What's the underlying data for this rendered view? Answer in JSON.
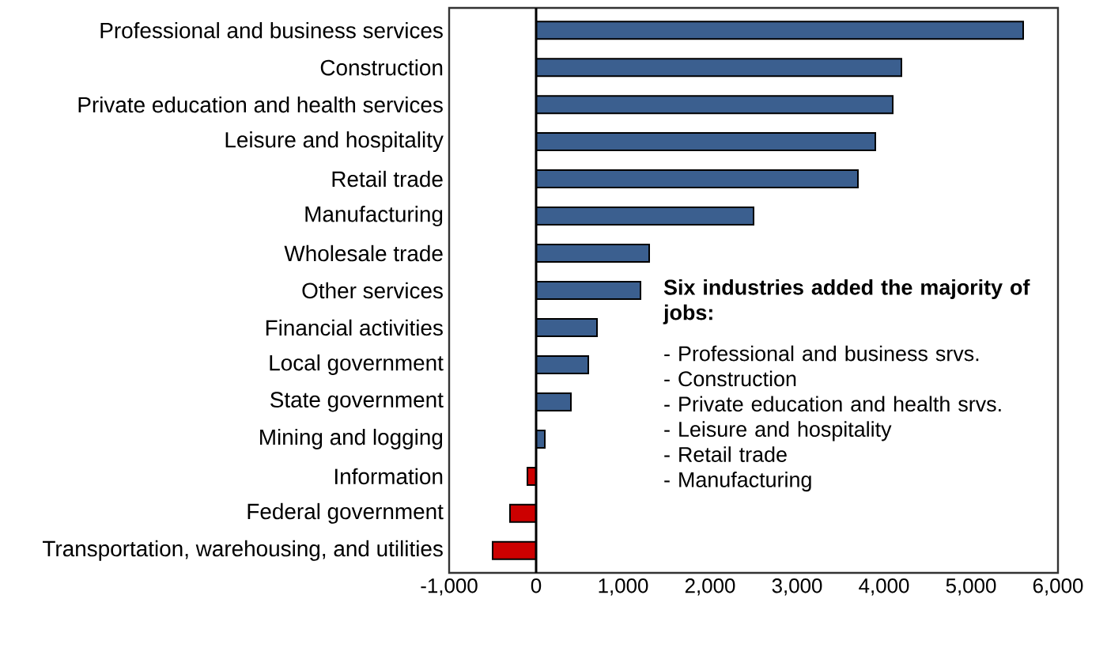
{
  "chart_data": {
    "type": "bar",
    "orientation": "horizontal",
    "categories": [
      "Professional and business services",
      "Construction",
      "Private education and health services",
      "Leisure and hospitality",
      "Retail trade",
      "Manufacturing",
      "Wholesale trade",
      "Other services",
      "Financial activities",
      "Local government",
      "State government",
      "Mining and logging",
      "Information",
      "Federal government",
      "Transportation, warehousing, and utilities"
    ],
    "values": [
      5600,
      4200,
      4100,
      3900,
      3700,
      2500,
      1300,
      1200,
      700,
      600,
      400,
      100,
      -100,
      -300,
      -500
    ],
    "colors": [
      "#3b5f8f",
      "#3b5f8f",
      "#3b5f8f",
      "#3b5f8f",
      "#3b5f8f",
      "#3b5f8f",
      "#3b5f8f",
      "#3b5f8f",
      "#3b5f8f",
      "#3b5f8f",
      "#3b5f8f",
      "#3b5f8f",
      "#cc0000",
      "#cc0000",
      "#cc0000"
    ],
    "xlim": [
      -1000,
      6000
    ],
    "xticks": [
      {
        "value": -1000,
        "label": "-1,000"
      },
      0,
      {
        "value": 1000,
        "label": "1,000"
      },
      {
        "value": 2000,
        "label": "2,000"
      },
      {
        "value": 3000,
        "label": "3,000"
      },
      {
        "value": 4000,
        "label": "4,000"
      },
      {
        "value": 5000,
        "label": "5,000"
      },
      {
        "value": 6000,
        "label": "6,000"
      }
    ],
    "annotations": [
      "Six industries added the majority of jobs:",
      "- Professional and business srvs.",
      "- Construction",
      "- Private education and health srvs.",
      "- Leisure and hospitality",
      "- Retail trade",
      "- Manufacturing"
    ]
  }
}
